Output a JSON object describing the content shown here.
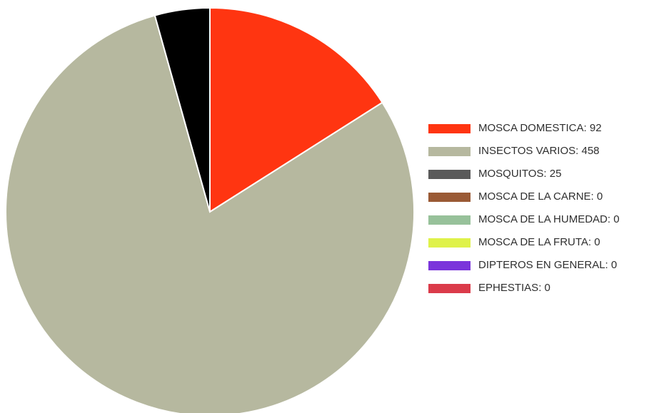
{
  "chart_data": {
    "type": "pie",
    "title": "",
    "start_angle_deg": 0,
    "direction": "clockwise",
    "legend_position": "right",
    "slices": [
      {
        "label": "MOSCA DOMESTICA",
        "legend_text": "MOSCA DOMESTICA: 92",
        "value": 92,
        "color": "#ff3511"
      },
      {
        "label": "INSECTOS VARIOS",
        "legend_text": "INSECTOS VARIOS: 458",
        "value": 458,
        "color": "#b6b89f"
      },
      {
        "label": "MOSQUITOS",
        "legend_text": "MOSQUITOS: 25",
        "value": 25,
        "color": "#000000",
        "legend_color": "#5a5a5a"
      },
      {
        "label": "MOSCA DE LA CARNE",
        "legend_text": "MOSCA DE LA CARNE: 0",
        "value": 0,
        "color": "#9a5a35"
      },
      {
        "label": "MOSCA DE LA HUMEDAD",
        "legend_text": "MOSCA DE LA HUMEDAD: 0",
        "value": 0,
        "color": "#97c19a"
      },
      {
        "label": "MOSCA DE LA FRUTA",
        "legend_text": "MOSCA DE LA FRUTA: 0",
        "value": 0,
        "color": "#dff24a"
      },
      {
        "label": "DIPTEROS EN GENERAL",
        "legend_text": "DIPTEROS EN GENERAL: 0",
        "value": 0,
        "color": "#7b35db"
      },
      {
        "label": "EPHESTIAS",
        "legend_text": "EPHESTIAS: 0",
        "value": 0,
        "color": "#db3b4a"
      }
    ]
  }
}
